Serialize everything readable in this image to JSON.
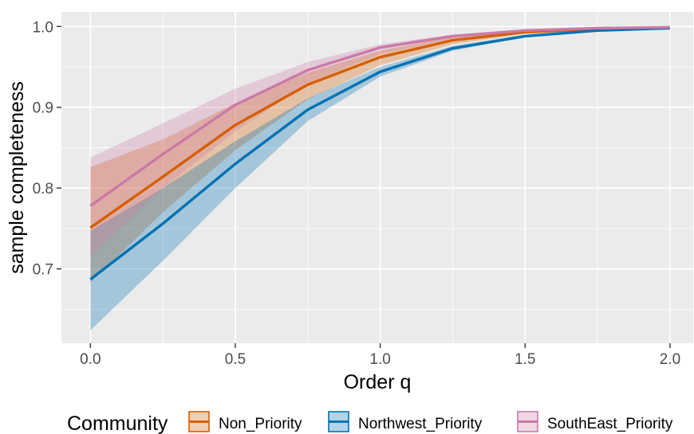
{
  "chart_data": {
    "type": "line",
    "title": "",
    "xlabel": "Order q",
    "ylabel": "sample completeness",
    "xlim": [
      -0.1,
      2.08
    ],
    "ylim": [
      0.608,
      1.018
    ],
    "x_ticks": [
      0.0,
      0.5,
      1.0,
      1.5,
      2.0
    ],
    "x_tick_labels": [
      "0.0",
      "0.5",
      "1.0",
      "1.5",
      "2.0"
    ],
    "y_ticks": [
      0.7,
      0.8,
      0.9,
      1.0
    ],
    "y_tick_labels": [
      "0.7",
      "0.8",
      "0.9",
      "1.0"
    ],
    "grid": true,
    "legend": {
      "title": "Community",
      "position": "bottom"
    },
    "x": [
      0,
      0.25,
      0.5,
      0.75,
      1.0,
      1.25,
      1.5,
      1.75,
      2.0
    ],
    "series": [
      {
        "name": "Non_Priority",
        "color": "#D55E00",
        "values": [
          0.751,
          0.814,
          0.878,
          0.928,
          0.962,
          0.983,
          0.993,
          0.997,
          0.998
        ],
        "lower": [
          0.683,
          0.77,
          0.847,
          0.91,
          0.952,
          0.978,
          0.991,
          0.996,
          0.998
        ],
        "upper": [
          0.826,
          0.86,
          0.905,
          0.943,
          0.97,
          0.987,
          0.995,
          0.998,
          0.999
        ]
      },
      {
        "name": "Northwest_Priority",
        "color": "#0072B2",
        "values": [
          0.687,
          0.756,
          0.83,
          0.897,
          0.944,
          0.973,
          0.988,
          0.995,
          0.998
        ],
        "lower": [
          0.624,
          0.71,
          0.8,
          0.883,
          0.938,
          0.97,
          0.987,
          0.995,
          0.998
        ],
        "upper": [
          0.747,
          0.8,
          0.858,
          0.911,
          0.95,
          0.976,
          0.99,
          0.996,
          0.999
        ]
      },
      {
        "name": "SouthEast_Priority",
        "color": "#CC79A7",
        "values": [
          0.778,
          0.842,
          0.903,
          0.946,
          0.974,
          0.988,
          0.995,
          0.998,
          0.999
        ],
        "lower": [
          0.715,
          0.8,
          0.87,
          0.93,
          0.966,
          0.985,
          0.993,
          0.997,
          0.999
        ],
        "upper": [
          0.838,
          0.88,
          0.923,
          0.956,
          0.978,
          0.99,
          0.996,
          0.999,
          1.0
        ]
      }
    ]
  }
}
